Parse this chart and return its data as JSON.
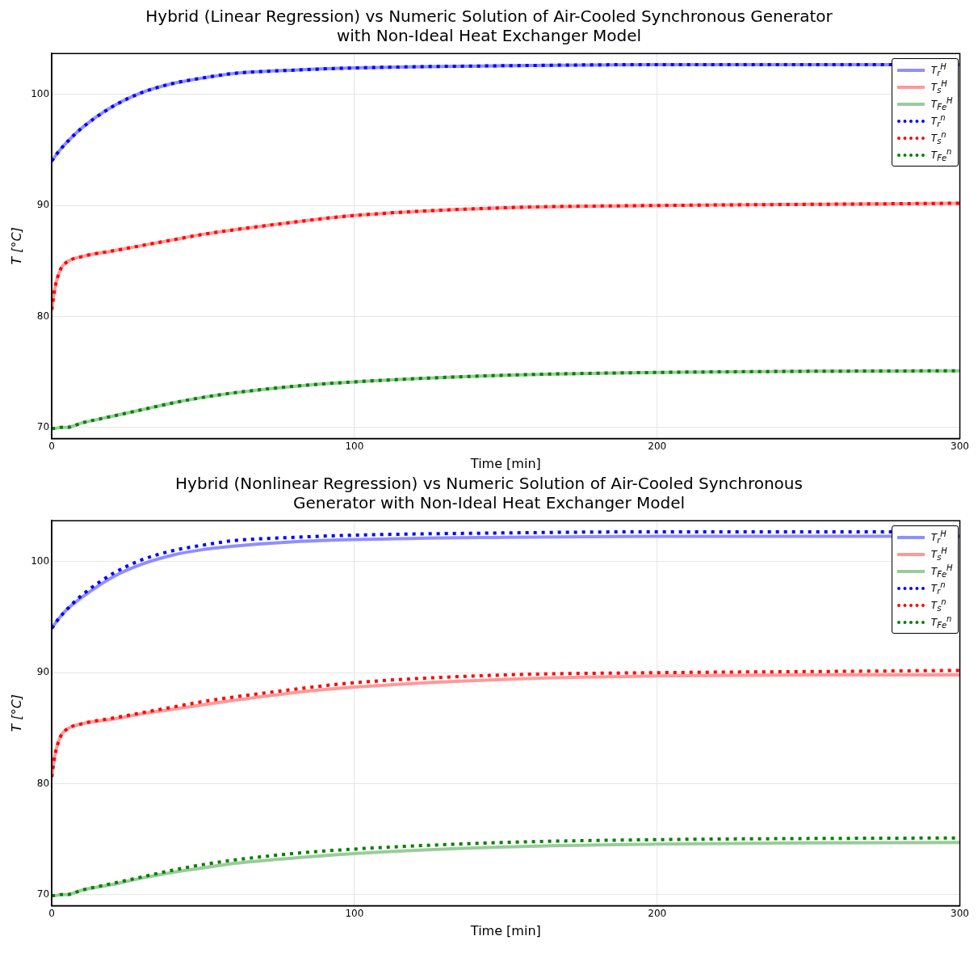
{
  "chart_data": [
    {
      "type": "line",
      "title": "Hybrid (Linear Regression) vs Numeric Solution of Air-Cooled Synchronous Generator with Non-Ideal Heat Exchanger Model",
      "xlabel": "Time [min]",
      "ylabel": "T [°C]",
      "x": [
        0,
        1,
        3,
        5,
        10,
        20,
        30,
        40,
        50,
        60,
        80,
        100,
        150,
        200,
        250,
        300
      ],
      "xlim": [
        0,
        300
      ],
      "xticks": [
        0,
        100,
        200,
        300
      ],
      "ylim": [
        69,
        103.7
      ],
      "yticks": [
        70,
        80,
        90,
        100
      ],
      "grid": true,
      "legend": "top right",
      "series": [
        {
          "name": "T$_{r}$$^{H}$",
          "color": "#8f8fff",
          "line_style": "solid",
          "values": [
            94.0,
            94.4,
            95.1,
            95.7,
            97.0,
            98.9,
            100.2,
            101.0,
            101.5,
            101.9,
            102.2,
            102.4,
            102.6,
            102.7,
            102.7,
            102.7
          ]
        },
        {
          "name": "T$_{s}$$^{H}$",
          "color": "#ff9999",
          "line_style": "solid",
          "values": [
            80.6,
            82.5,
            84.3,
            84.9,
            85.4,
            85.9,
            86.4,
            86.9,
            87.4,
            87.8,
            88.5,
            89.1,
            89.8,
            90.0,
            90.1,
            90.2
          ]
        },
        {
          "name": "T$_{Fe}$$^{H}$",
          "color": "#99cc99",
          "line_style": "solid",
          "values": [
            69.9,
            69.9,
            70.0,
            70.0,
            70.4,
            71.0,
            71.6,
            72.2,
            72.7,
            73.1,
            73.7,
            74.1,
            74.7,
            74.95,
            75.05,
            75.1
          ]
        },
        {
          "name": "T$_{r}$$^{n}$",
          "color": "#0000ff",
          "line_style": "dotted",
          "values": [
            94.0,
            94.4,
            95.1,
            95.7,
            97.0,
            98.9,
            100.2,
            101.0,
            101.5,
            101.9,
            102.2,
            102.4,
            102.6,
            102.7,
            102.7,
            102.7
          ]
        },
        {
          "name": "T$_{s}$$^{n}$",
          "color": "#ff0000",
          "line_style": "dotted",
          "values": [
            80.6,
            82.5,
            84.3,
            84.9,
            85.4,
            85.9,
            86.4,
            86.9,
            87.4,
            87.8,
            88.5,
            89.1,
            89.8,
            90.0,
            90.1,
            90.2
          ]
        },
        {
          "name": "T$_{Fe}$$^{n}$",
          "color": "#008000",
          "line_style": "dotted",
          "values": [
            69.9,
            69.9,
            70.0,
            70.0,
            70.4,
            71.0,
            71.6,
            72.2,
            72.7,
            73.1,
            73.7,
            74.1,
            74.7,
            74.95,
            75.05,
            75.1
          ]
        }
      ]
    },
    {
      "type": "line",
      "title": "Hybrid (Nonlinear Regression) vs Numeric Solution of Air-Cooled Synchronous Generator with Non-Ideal Heat Exchanger Model",
      "xlabel": "Time [min]",
      "ylabel": "T [°C]",
      "x": [
        0,
        1,
        3,
        5,
        10,
        20,
        30,
        40,
        50,
        60,
        80,
        100,
        150,
        200,
        250,
        300
      ],
      "xlim": [
        0,
        300
      ],
      "xticks": [
        0,
        100,
        200,
        300
      ],
      "ylim": [
        69,
        103.7
      ],
      "yticks": [
        70,
        80,
        90,
        100
      ],
      "grid": true,
      "legend": "top right",
      "series": [
        {
          "name": "T$_{r}$$^{H}$",
          "color": "#8f8fff",
          "line_style": "solid",
          "values": [
            94.0,
            94.4,
            95.1,
            95.7,
            96.8,
            98.6,
            99.8,
            100.6,
            101.1,
            101.4,
            101.8,
            102.0,
            102.2,
            102.3,
            102.3,
            102.3
          ]
        },
        {
          "name": "T$_{s}$$^{H}$",
          "color": "#ff9999",
          "line_style": "solid",
          "values": [
            80.6,
            82.5,
            84.3,
            84.9,
            85.4,
            85.8,
            86.3,
            86.7,
            87.1,
            87.5,
            88.2,
            88.7,
            89.4,
            89.7,
            89.8,
            89.8
          ]
        },
        {
          "name": "T$_{Fe}$$^{H}$",
          "color": "#99cc99",
          "line_style": "solid",
          "values": [
            69.9,
            69.9,
            70.0,
            70.0,
            70.4,
            70.9,
            71.5,
            72.0,
            72.4,
            72.8,
            73.3,
            73.7,
            74.3,
            74.55,
            74.65,
            74.7
          ]
        },
        {
          "name": "T$_{r}$$^{n}$",
          "color": "#0000ff",
          "line_style": "dotted",
          "values": [
            94.0,
            94.4,
            95.1,
            95.7,
            97.0,
            98.9,
            100.2,
            101.0,
            101.5,
            101.9,
            102.2,
            102.4,
            102.6,
            102.7,
            102.7,
            102.7
          ]
        },
        {
          "name": "T$_{s}$$^{n}$",
          "color": "#ff0000",
          "line_style": "dotted",
          "values": [
            80.6,
            82.5,
            84.3,
            84.9,
            85.4,
            85.9,
            86.4,
            86.9,
            87.4,
            87.8,
            88.5,
            89.1,
            89.8,
            90.0,
            90.1,
            90.2
          ]
        },
        {
          "name": "T$_{Fe}$$^{n}$",
          "color": "#008000",
          "line_style": "dotted",
          "values": [
            69.9,
            69.9,
            70.0,
            70.0,
            70.4,
            71.0,
            71.6,
            72.2,
            72.7,
            73.1,
            73.7,
            74.1,
            74.7,
            74.95,
            75.05,
            75.1
          ]
        }
      ]
    }
  ]
}
